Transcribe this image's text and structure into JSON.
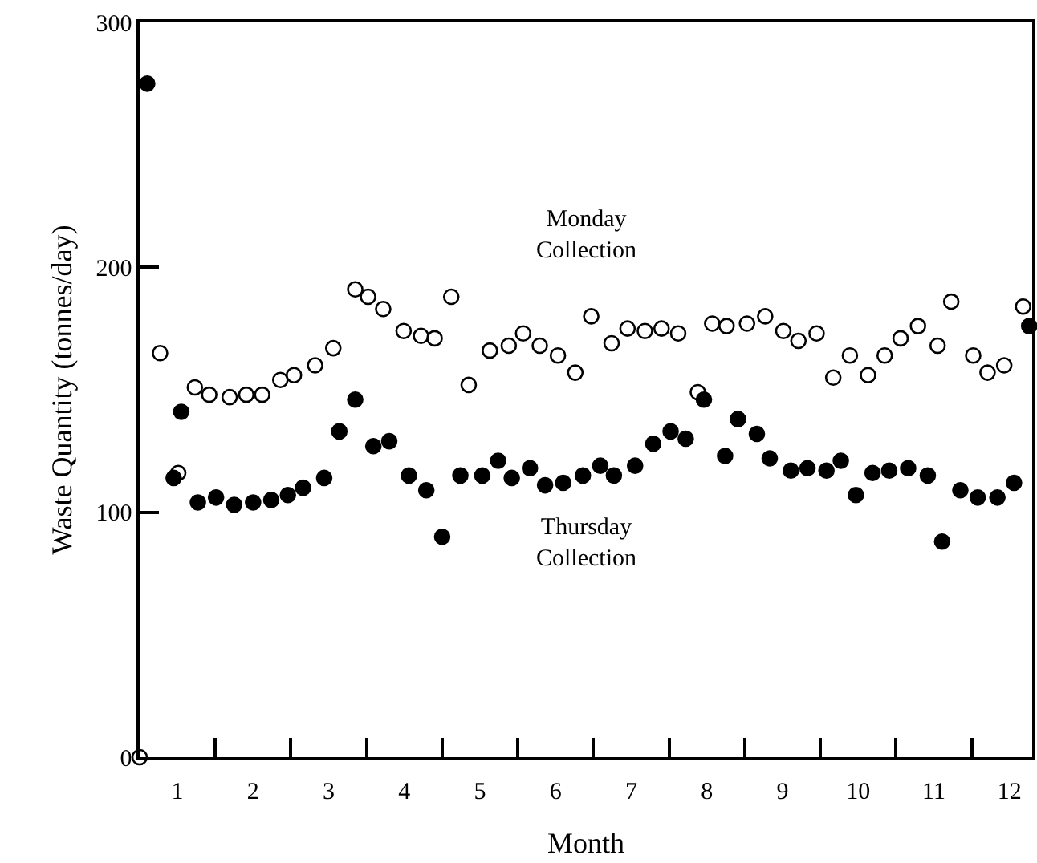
{
  "chart_data": {
    "type": "scatter",
    "xlabel": "Month",
    "ylabel": "Waste Quantity (tonnes/day)",
    "marker": "circle",
    "legend": false,
    "xlim": [
      0.5,
      12.3
    ],
    "ylim": [
      0,
      300
    ],
    "yticks": [
      0,
      100,
      200,
      300
    ],
    "xticks": [
      {
        "value": 1,
        "label": "1"
      },
      {
        "value": 1.5,
        "label": null
      },
      {
        "value": 2,
        "label": "2"
      },
      {
        "value": 2.5,
        "label": null
      },
      {
        "value": 3,
        "label": "3"
      },
      {
        "value": 3.5,
        "label": null
      },
      {
        "value": 4,
        "label": "4"
      },
      {
        "value": 4.5,
        "label": null
      },
      {
        "value": 5,
        "label": "5"
      },
      {
        "value": 5.5,
        "label": null
      },
      {
        "value": 6,
        "label": "6"
      },
      {
        "value": 6.5,
        "label": null
      },
      {
        "value": 7,
        "label": "7"
      },
      {
        "value": 7.5,
        "label": null
      },
      {
        "value": 8,
        "label": "8"
      },
      {
        "value": 8.5,
        "label": null
      },
      {
        "value": 9,
        "label": "9"
      },
      {
        "value": 9.5,
        "label": null
      },
      {
        "value": 10,
        "label": "10"
      },
      {
        "value": 10.5,
        "label": null
      },
      {
        "value": 11,
        "label": "11"
      },
      {
        "value": 11.5,
        "label": null
      },
      {
        "value": 12,
        "label": "12"
      }
    ],
    "series": [
      {
        "name": "Monday\nCollection",
        "color": "#ffffff",
        "x": [
          0.5,
          0.77,
          1.01,
          1.23,
          1.42,
          1.69,
          1.91,
          2.12,
          2.36,
          2.54,
          2.82,
          3.06,
          3.35,
          3.52,
          3.72,
          3.99,
          4.22,
          4.4,
          4.62,
          4.85,
          5.13,
          5.38,
          5.57,
          5.79,
          6.03,
          6.26,
          6.47,
          6.74,
          6.95,
          7.18,
          7.4,
          7.62,
          7.88,
          8.07,
          8.26,
          8.53,
          8.77,
          9.01,
          9.21,
          9.45,
          9.67,
          9.89,
          10.13,
          10.35,
          10.56,
          10.79,
          11.05,
          11.23,
          11.52,
          11.71,
          11.93,
          12.18
        ],
        "values": [
          0,
          165,
          116,
          151,
          148,
          147,
          148,
          148,
          154,
          156,
          160,
          167,
          191,
          188,
          183,
          174,
          172,
          171,
          188,
          152,
          166,
          168,
          173,
          168,
          164,
          157,
          180,
          169,
          175,
          174,
          175,
          173,
          149,
          177,
          176,
          177,
          180,
          174,
          170,
          173,
          155,
          164,
          156,
          164,
          171,
          176,
          168,
          186,
          164,
          157,
          160,
          184
        ]
      },
      {
        "name": "Thursday\nCollection",
        "color": "#000000",
        "x": [
          0.6,
          0.95,
          1.05,
          1.27,
          1.51,
          1.75,
          2.0,
          2.24,
          2.46,
          2.66,
          2.94,
          3.14,
          3.35,
          3.59,
          3.8,
          4.06,
          4.29,
          4.5,
          4.74,
          5.03,
          5.24,
          5.42,
          5.66,
          5.86,
          6.1,
          6.36,
          6.59,
          6.77,
          7.05,
          7.29,
          7.52,
          7.72,
          7.96,
          8.24,
          8.41,
          8.66,
          8.83,
          9.11,
          9.33,
          9.58,
          9.77,
          9.97,
          10.19,
          10.41,
          10.66,
          10.92,
          11.11,
          11.35,
          11.58,
          11.84,
          12.06,
          12.26
        ],
        "values": [
          275,
          114,
          141,
          104,
          106,
          103,
          104,
          105,
          107,
          110,
          114,
          133,
          146,
          127,
          129,
          115,
          109,
          90,
          115,
          115,
          121,
          114,
          118,
          111,
          112,
          115,
          119,
          115,
          119,
          128,
          133,
          130,
          146,
          123,
          138,
          132,
          122,
          117,
          118,
          117,
          121,
          107,
          116,
          117,
          118,
          115,
          88,
          109,
          106,
          106,
          112,
          176
        ]
      }
    ]
  }
}
